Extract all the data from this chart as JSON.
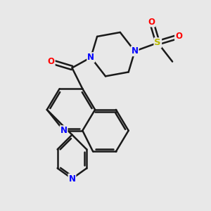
{
  "bg_color": "#e8e8e8",
  "bond_color": "#1a1a1a",
  "bond_width": 1.8,
  "atom_colors": {
    "N": "#0000ff",
    "O": "#ff0000",
    "S": "#b8b800",
    "C": "#1a1a1a"
  },
  "font_size": 8.5,
  "fig_size": [
    3.0,
    3.0
  ],
  "dpi": 100,
  "xlim": [
    0,
    10
  ],
  "ylim": [
    0,
    10
  ]
}
